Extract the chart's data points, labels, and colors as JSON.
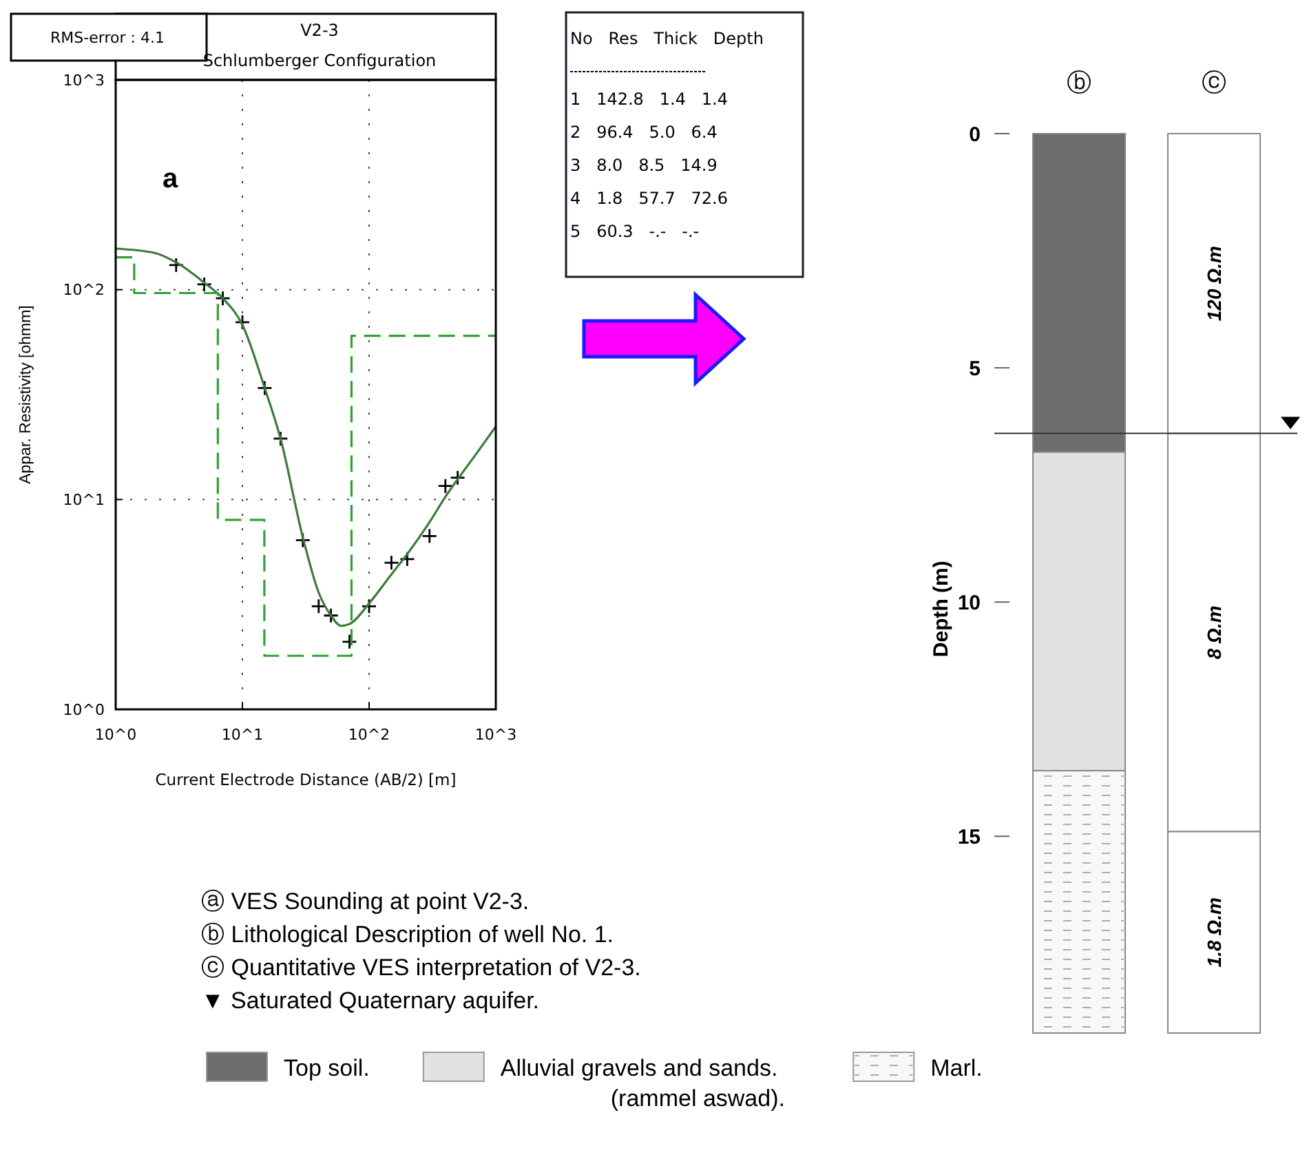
{
  "chart_data": [
    {
      "type": "scatter",
      "title": "V2-3",
      "subtitle": "Schlumberger Configuration",
      "xlabel": "Current Electrode Distance (AB/2) [m]",
      "ylabel": "Appar. Resistivity [ohmm]",
      "annotations": [
        "RMS-error : 4.1",
        "a"
      ],
      "log": "xy",
      "grid": true,
      "xlim": [
        1,
        1000
      ],
      "ylim": [
        1,
        1000
      ],
      "xticks": [
        {
          "value": 1,
          "label": "10^0"
        },
        {
          "value": 10,
          "label": "10^1"
        },
        {
          "value": 100,
          "label": "10^2"
        },
        {
          "value": 1000,
          "label": "10^3"
        }
      ],
      "yticks": [
        {
          "value": 1,
          "label": "10^0"
        },
        {
          "value": 10,
          "label": "10^1"
        },
        {
          "value": 100,
          "label": "10^2"
        },
        {
          "value": 1000,
          "label": "10^3"
        }
      ],
      "series": [
        {
          "type": "scatter",
          "marker": "cross",
          "color": "#000000",
          "x": [
            3,
            5,
            7,
            10,
            15,
            20,
            30,
            40,
            50,
            70,
            100,
            150,
            200,
            300,
            400,
            500
          ],
          "values": [
            131,
            106,
            91,
            70,
            34,
            19.5,
            6.4,
            3.1,
            2.8,
            2.1,
            3.1,
            5.0,
            5.2,
            6.7,
            11.6,
            12.7
          ]
        },
        {
          "type": "line",
          "color": "#3d7a3d",
          "x": [
            1,
            2,
            3,
            5,
            7,
            10,
            15,
            20,
            30,
            40,
            50,
            60,
            70,
            100,
            150,
            200,
            300,
            400,
            500,
            700,
            1000
          ],
          "values": [
            157,
            150,
            135,
            108,
            91,
            68,
            34,
            19.5,
            6.6,
            3.6,
            2.8,
            2.5,
            2.55,
            3.2,
            4.4,
            5.5,
            7.8,
            10.3,
            12.5,
            16.5,
            22.3
          ]
        },
        {
          "type": "step",
          "line_style": "dashed",
          "color": "#33a033",
          "x": [
            1,
            1.4,
            6.4,
            14.9,
            72.6,
            1000
          ],
          "values": [
            142.8,
            96.4,
            8.0,
            1.8,
            60.3,
            60.3
          ]
        }
      ]
    },
    {
      "type": "other",
      "annotations": [
        "No Res Thick Depth",
        "1 142.8 1.4 1.4",
        "2 96.4 5.0 6.4",
        "3 8.0 8.5 14.9",
        "4 1.8 57.7 72.6",
        "5 60.3 -.- -.-"
      ]
    },
    {
      "type": "bar",
      "stacked": true,
      "categories": [
        "ⓑ",
        "ⓒ"
      ],
      "ylabel": "Depth (m)",
      "ylim": [
        19.2,
        0
      ],
      "yticks": [
        0,
        5,
        10,
        15
      ],
      "legend": "bottom",
      "ref_lines": [
        {
          "axis": "y",
          "value": 6.4
        }
      ],
      "annotations": [
        "ⓐ VES Sounding at point V2-3.",
        "ⓑ Lithological Description of well No. 1.",
        "ⓒ Quantitative VES interpretation of V2-3.",
        "▼ Saturated Quaternary aquifer.",
        "120 Ω.m",
        "8 Ω.m",
        "1.8 Ω.m"
      ],
      "series": [
        {
          "name": "Top soil.",
          "color": "#6e6e6e",
          "values": [
            6.8,
            null
          ]
        },
        {
          "name": "Alluvial gravels and sands.\n(rammel aswad).",
          "color": "#e2e2e2",
          "values": [
            6.8,
            null
          ]
        },
        {
          "name": "Marl.",
          "color": "#f8f8f8",
          "values": [
            5.6,
            null
          ]
        },
        {
          "color": "#ffffff",
          "values": [
            null,
            6.4
          ]
        },
        {
          "color": "#ffffff",
          "values": [
            null,
            8.5
          ]
        },
        {
          "color": "#ffffff",
          "values": [
            null,
            4.3
          ]
        }
      ]
    }
  ]
}
